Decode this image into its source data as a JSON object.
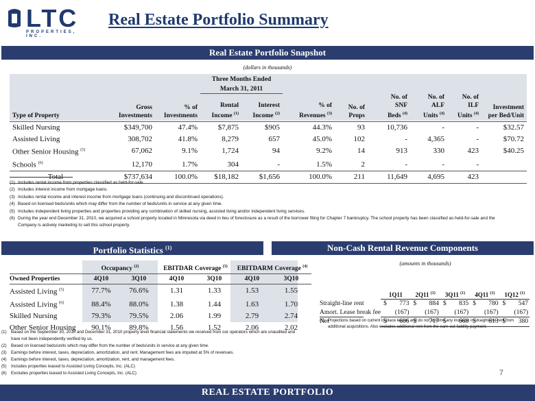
{
  "logo": {
    "text": "LTC",
    "sub": "PROPERTIES, INC."
  },
  "page_title": "Real Estate Portfolio Summary",
  "snapshot": {
    "banner": "Real Estate Portfolio Snapshot",
    "units_note": "(dollars in thousands)",
    "group_header_1": "Three Months Ended",
    "group_header_2": "March 31, 2011",
    "headers": {
      "type": "Type of Property",
      "gross": [
        "Gross",
        "Investments"
      ],
      "pct_inv": [
        "% of",
        "Investments"
      ],
      "rental": [
        "Rental",
        "Income",
        "(1)"
      ],
      "interest": [
        "Interest",
        "Income",
        "(2)"
      ],
      "pct_rev": [
        "% of",
        "Revenues",
        "(3)"
      ],
      "props": [
        "No. of",
        "Props"
      ],
      "snf": [
        "No. of",
        "SNF",
        "Beds",
        "(4)"
      ],
      "alf": [
        "No. of",
        "ALF",
        "Units",
        "(4)"
      ],
      "ilf": [
        "No. of",
        "ILF",
        "Units",
        "(4)"
      ],
      "inv_bed": [
        "Investment",
        "per Bed/Unit"
      ]
    },
    "rows": [
      {
        "type": "Skilled Nursing",
        "sup": "",
        "gross": "$349,700",
        "pct_inv": "47.4%",
        "rental": "$7,875",
        "interest": "$905",
        "pct_rev": "44.3%",
        "props": "93",
        "snf": "10,736",
        "alf": "-",
        "ilf": "-",
        "inv_bed": "$32.57"
      },
      {
        "type": "Assisted Living",
        "sup": "",
        "gross": "308,702",
        "pct_inv": "41.8%",
        "rental": "8,279",
        "interest": "657",
        "pct_rev": "45.0%",
        "props": "102",
        "snf": "-",
        "alf": "4,365",
        "ilf": "-",
        "inv_bed": "$70.72"
      },
      {
        "type": "Other Senior Housing",
        "sup": "(5)",
        "gross": "67,062",
        "pct_inv": "9.1%",
        "rental": "1,724",
        "interest": "94",
        "pct_rev": "9.2%",
        "props": "14",
        "snf": "913",
        "alf": "330",
        "ilf": "423",
        "inv_bed": "$40.25"
      },
      {
        "type": "Schools",
        "sup": "(6)",
        "gross": "12,170",
        "pct_inv": "1.7%",
        "rental": "304",
        "interest": "-",
        "pct_rev": "1.5%",
        "props": "2",
        "snf": "-",
        "alf": "-",
        "ilf": "-",
        "inv_bed": ""
      }
    ],
    "total": {
      "type": "Total",
      "gross": "$737,634",
      "pct_inv": "100.0%",
      "rental": "$18,182",
      "interest": "$1,656",
      "pct_rev": "100.0%",
      "props": "211",
      "snf": "11,649",
      "alf": "4,695",
      "ilf": "423",
      "inv_bed": ""
    },
    "footnotes": [
      {
        "num": "(1)",
        "text": "Includes rental income from properties classified as held-for-sale."
      },
      {
        "num": "(2)",
        "text": "Includes interest income from mortgage loans."
      },
      {
        "num": "(3)",
        "text": "Includes rental income and interest income from mortgage loans (continuing and discontinued operations)."
      },
      {
        "num": "(4)",
        "text": "Based on licensed beds/units which may differ from the number of beds/units in service at any given time."
      },
      {
        "num": "(5)",
        "text": "Includes independent living properties and properties providing any combination of skilled nursing, assisted living and/or independent living services."
      },
      {
        "num": "(6)",
        "text": "During the year end December 31, 2010, we acquired a school property located in Minnesota via deed in lieu of foreclosure as a result of the borrower filing for Chapter 7 bankruptcy.  The school property has been classified as held-for-sale and the Company is actively marketing to sell this school property."
      }
    ]
  },
  "stats": {
    "banner": "Portfolio Statistics",
    "banner_sup": "(1)",
    "groups": [
      {
        "label": "Occupancy",
        "sup": "(2)"
      },
      {
        "label": "EBITDAR Coverage",
        "sup": "(3)"
      },
      {
        "label": "EBITDARM Coverage",
        "sup": "(4)"
      }
    ],
    "owned_label": "Owned Properties",
    "periods": [
      "4Q10",
      "3Q10",
      "4Q10",
      "3Q10",
      "4Q10",
      "3Q10"
    ],
    "rows": [
      {
        "label": "Assisted Living",
        "sup": "(5)",
        "values": [
          "77.7%",
          "76.6%",
          "1.31",
          "1.33",
          "1.53",
          "1.55"
        ]
      },
      {
        "label": "Assisted Living",
        "sup": "(6)",
        "values": [
          "88.4%",
          "88.0%",
          "1.38",
          "1.44",
          "1.63",
          "1.70"
        ]
      },
      {
        "label": "Skilled Nursing",
        "sup": "",
        "values": [
          "79.3%",
          "79.5%",
          "2.06",
          "1.99",
          "2.79",
          "2.74"
        ]
      },
      {
        "label": "Other Senior Housing",
        "sup": "",
        "values": [
          "90.1%",
          "89.8%",
          "1.56",
          "1.52",
          "2.06",
          "2.02"
        ]
      }
    ],
    "footnotes": [
      {
        "num": "(1)",
        "text": "Based on the September 30, 2010 and December 31, 2010 property level financial statements we received from our operators which are unaudited and have not been independently verified by us."
      },
      {
        "num": "(2)",
        "text": "Based on licensed beds/units which may differ from the number of beds/units in service at any given time."
      },
      {
        "num": "(3)",
        "text": "Earnings before interest, taxes, depreciation, amortization, and rent.  Management fees are imputed at 5% of revenues."
      },
      {
        "num": "(4)",
        "text": "Earnings before interest, taxes, depreciation, amortization, rent, and management fees."
      },
      {
        "num": "(5)",
        "text": "Includes properties leased to Assisted Living Concepts, Inc. (ALC)"
      },
      {
        "num": "(6)",
        "text": "Excludes properties leased to Assisted Living Concepts, Inc. (ALC)"
      }
    ]
  },
  "noncash": {
    "banner": "Non-Cash Rental  Revenue Components",
    "units_note": "(amounts in thousands)",
    "periods": [
      {
        "label": "1Q11",
        "sup": ""
      },
      {
        "label": "2Q11",
        "sup": "(1)"
      },
      {
        "label": "3Q11",
        "sup": "(1)"
      },
      {
        "label": "4Q11",
        "sup": "(1)"
      },
      {
        "label": "1Q12",
        "sup": "(1)"
      }
    ],
    "rows": [
      {
        "label": "Straight-line rent",
        "cells": [
          [
            "$",
            "773"
          ],
          [
            "$",
            "884"
          ],
          [
            "$",
            "835"
          ],
          [
            "$",
            "780"
          ],
          [
            "$",
            "547"
          ]
        ]
      },
      {
        "label": "Amort. Lease break fee",
        "cells": [
          [
            "",
            "(167)"
          ],
          [
            "",
            "(167)"
          ],
          [
            "",
            "(167)"
          ],
          [
            "",
            "(167)"
          ],
          [
            "",
            "(167)"
          ]
        ]
      },
      {
        "label": "Net",
        "cells": [
          [
            "$",
            "606"
          ],
          [
            "$",
            "717"
          ],
          [
            "$",
            "668"
          ],
          [
            "$",
            "613"
          ],
          [
            "$",
            "380"
          ]
        ]
      }
    ],
    "footnote": {
      "num": "(1)",
      "text": "Projections based on current in-place leases and do not assume any increase in straight-line rent from additional acquisitions.  Also excludes additional rent from the earn-out liability payment."
    }
  },
  "page_number": "7",
  "footer": "REAL ESTATE PORTFOLIO"
}
